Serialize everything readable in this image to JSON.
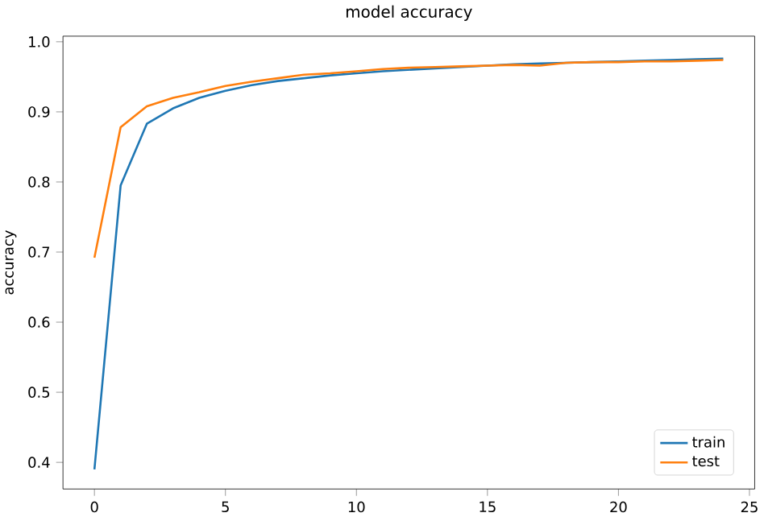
{
  "chart_data": {
    "type": "line",
    "title": "model accuracy",
    "ylabel": "accuracy",
    "x": [
      0,
      1,
      2,
      3,
      4,
      5,
      6,
      7,
      8,
      9,
      10,
      11,
      12,
      13,
      14,
      15,
      16,
      17,
      18,
      19,
      20,
      21,
      22,
      23,
      24
    ],
    "series": [
      {
        "name": "train",
        "color": "#1f77b4",
        "values": [
          0.39,
          0.795,
          0.883,
          0.905,
          0.92,
          0.93,
          0.938,
          0.944,
          0.948,
          0.952,
          0.955,
          0.958,
          0.96,
          0.962,
          0.964,
          0.966,
          0.968,
          0.969,
          0.97,
          0.971,
          0.972,
          0.973,
          0.974,
          0.975,
          0.976
        ]
      },
      {
        "name": "test",
        "color": "#ff7f0e",
        "values": [
          0.692,
          0.878,
          0.908,
          0.92,
          0.928,
          0.937,
          0.943,
          0.948,
          0.953,
          0.955,
          0.958,
          0.961,
          0.963,
          0.964,
          0.965,
          0.966,
          0.967,
          0.966,
          0.97,
          0.971,
          0.971,
          0.972,
          0.972,
          0.973,
          0.974
        ]
      }
    ],
    "xlim": [
      -1.2,
      25.2
    ],
    "ylim": [
      0.362,
      1.008
    ],
    "xticks": [
      0,
      5,
      10,
      15,
      20,
      25
    ],
    "yticks": [
      0.4,
      0.5,
      0.6,
      0.7,
      0.8,
      0.9,
      {
        "value": 1.0,
        "label": "1.0"
      }
    ],
    "legend": "bottom right",
    "grid": false,
    "marker": "none",
    "line_style": "solid"
  }
}
